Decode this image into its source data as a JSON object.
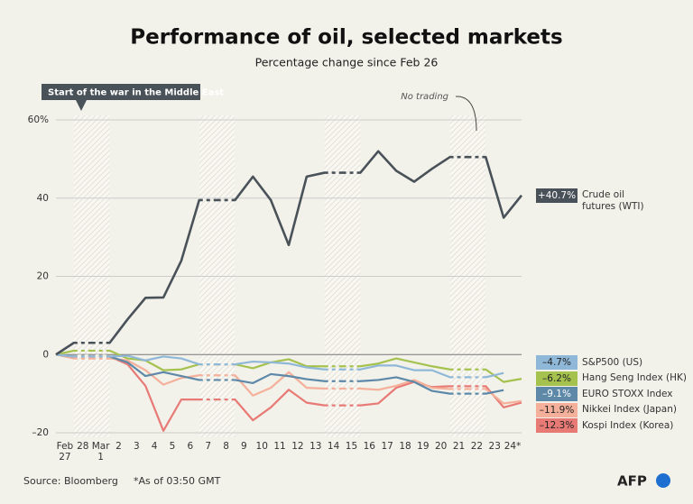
{
  "chart_data": {
    "type": "line",
    "title": "Performance of oil, selected markets",
    "subtitle": "Percentage change since Feb 26",
    "categories": [
      null,
      "Feb\n27",
      "28",
      "Mar\n1",
      "2",
      "3",
      "4",
      "5",
      "6",
      "7",
      "8",
      "9",
      "10",
      "11",
      "12",
      "13",
      "14",
      "15",
      "16",
      "17",
      "18",
      "19",
      "20",
      "21",
      "22",
      "23",
      "24*"
    ],
    "no_trading": [
      "28",
      "Mar\n1",
      "7",
      "8",
      "14",
      "15",
      "21",
      "22"
    ],
    "ylim": [
      -20,
      60
    ],
    "yticks": [
      {
        "value": 60,
        "label": "60%"
      },
      40,
      20,
      0,
      {
        "value": -20,
        "label": "–20"
      }
    ],
    "grid": true,
    "series": [
      {
        "name": "Crude oil\nfutures (WTI)",
        "color": "#4a5259",
        "values": [
          0,
          3,
          3,
          3,
          9,
          14.5,
          14.6,
          24,
          39.5,
          39.5,
          39.5,
          45.5,
          39.5,
          28,
          45.5,
          46.5,
          46.5,
          46.5,
          52,
          47,
          44.2,
          47.5,
          50.5,
          50.5,
          50.5,
          35,
          40.7
        ],
        "value_labels": [
          null,
          null,
          null,
          null,
          null,
          null,
          null,
          null,
          null,
          null,
          null,
          null,
          null,
          null,
          null,
          null,
          null,
          null,
          null,
          null,
          null,
          null,
          null,
          null,
          null,
          null,
          "+40.7%"
        ]
      },
      {
        "name": "S&P500 (US)",
        "color": "#8fb8d8",
        "values": [
          0,
          -0.5,
          -0.5,
          -0.5,
          -0.3,
          -1.5,
          -0.5,
          -1,
          -2.5,
          -2.5,
          -2.5,
          -1.8,
          -2,
          -2.3,
          -3.3,
          -3.8,
          -3.8,
          -3.8,
          -2.8,
          -2.8,
          -4,
          -4,
          -5.8,
          -5.8,
          -5.8,
          -4.7,
          null
        ],
        "value_labels": [
          null,
          null,
          null,
          null,
          null,
          null,
          null,
          null,
          null,
          null,
          null,
          null,
          null,
          null,
          null,
          null,
          null,
          null,
          null,
          null,
          null,
          null,
          null,
          null,
          null,
          "–4.7%",
          null
        ]
      },
      {
        "name": "Hang Seng Index (HK)",
        "color": "#a5c24f",
        "values": [
          0,
          1,
          1,
          1,
          -1,
          -1.5,
          -4,
          -3.8,
          -2.5,
          -2.5,
          -2.5,
          -3.5,
          -2,
          -1.2,
          -3,
          -3,
          -3,
          -3,
          -2.3,
          -1,
          -2,
          -3,
          -3.8,
          -3.8,
          -3.8,
          -7,
          -6.2
        ],
        "value_labels": [
          null,
          null,
          null,
          null,
          null,
          null,
          null,
          null,
          null,
          null,
          null,
          null,
          null,
          null,
          null,
          null,
          null,
          null,
          null,
          null,
          null,
          null,
          null,
          null,
          null,
          null,
          "–6.2%"
        ]
      },
      {
        "name": "EURO STOXX Index",
        "color": "#5d88a8",
        "values": [
          0,
          -0.5,
          -0.5,
          -0.5,
          -2,
          -5.5,
          -4.5,
          -5.5,
          -6.5,
          -6.5,
          -6.5,
          -7.3,
          -5,
          -5.5,
          -6.3,
          -6.8,
          -6.8,
          -6.8,
          -6.5,
          -5.8,
          -7,
          -9.3,
          -10,
          -10,
          -10,
          -9.1,
          null
        ],
        "value_labels": [
          null,
          null,
          null,
          null,
          null,
          null,
          null,
          null,
          null,
          null,
          null,
          null,
          null,
          null,
          null,
          null,
          null,
          null,
          null,
          null,
          null,
          null,
          null,
          null,
          null,
          "–9.1%",
          null
        ]
      },
      {
        "name": "Nikkei Index (Japan)",
        "color": "#f4b09a",
        "values": [
          0,
          -1,
          -1,
          -1,
          -1.5,
          -4,
          -7.7,
          -6,
          -5.3,
          -5.3,
          -5.3,
          -10.5,
          -8.5,
          -4.5,
          -8.5,
          -8.7,
          -8.7,
          -8.7,
          -9,
          -8,
          -6.5,
          -8.5,
          -8.8,
          -8.8,
          -8.8,
          -12.5,
          -11.9
        ],
        "value_labels": [
          null,
          null,
          null,
          null,
          null,
          null,
          null,
          null,
          null,
          null,
          null,
          null,
          null,
          null,
          null,
          null,
          null,
          null,
          null,
          null,
          null,
          null,
          null,
          null,
          null,
          null,
          "–11.9%"
        ]
      },
      {
        "name": "Kospi Index (Korea)",
        "color": "#e87a76",
        "values": [
          0,
          -0.5,
          -0.5,
          -0.5,
          -2.5,
          -8,
          -19.5,
          -11.5,
          -11.5,
          -11.5,
          -11.5,
          -16.8,
          -13.5,
          -9,
          -12.3,
          -13,
          -13,
          -13,
          -12.5,
          -8.5,
          -7,
          -8.3,
          -8.1,
          -8.1,
          -8.1,
          -13.5,
          -12.3
        ],
        "value_labels": [
          null,
          null,
          null,
          null,
          null,
          null,
          null,
          null,
          null,
          null,
          null,
          null,
          null,
          null,
          null,
          null,
          null,
          null,
          null,
          null,
          null,
          null,
          null,
          null,
          null,
          null,
          "–12.3%"
        ]
      }
    ],
    "annotations": [
      {
        "text": "Start of the war in the Middle East"
      },
      {
        "text": "No trading"
      }
    ],
    "source": "Source: Bloomberg",
    "note": "*As of 03:50 GMT",
    "logo": "AFP"
  }
}
